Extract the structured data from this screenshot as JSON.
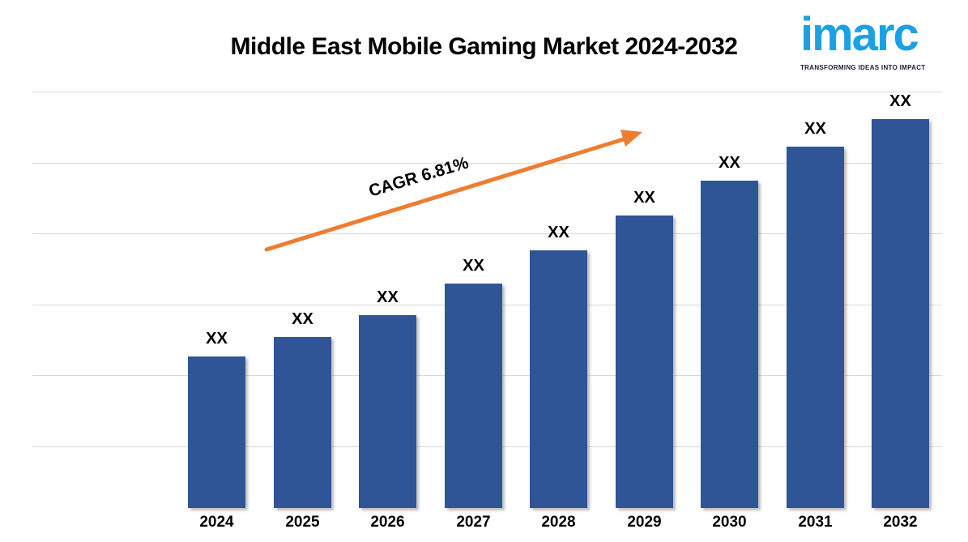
{
  "title": "Middle East Mobile Gaming Market 2024-2032",
  "logo": {
    "text": "imarc",
    "tagline": "TRANSFORMING IDEAS INTO IMPACT",
    "brand_color": "#1BA1E3",
    "tagline_color": "#1D1D35"
  },
  "annotation": {
    "label": "CAGR 6.81%"
  },
  "chart_data": {
    "type": "bar",
    "title": "Middle East Mobile Gaming Market 2024-2032",
    "categories": [
      "2024",
      "2025",
      "2026",
      "2027",
      "2028",
      "2029",
      "2030",
      "2031",
      "2032"
    ],
    "values": [
      "XX",
      "XX",
      "XX",
      "XX",
      "XX",
      "XX",
      "XX",
      "XX",
      "XX"
    ],
    "relative_bar_heights": [
      0.364,
      0.41,
      0.463,
      0.539,
      0.619,
      0.702,
      0.786,
      0.868,
      0.934
    ],
    "annotation": "CAGR 6.81%",
    "xlabel": "",
    "ylabel": "",
    "legend": "none",
    "gridline_count": 6,
    "colors": {
      "bar": "#2F5597",
      "arrow": "#ED7D31",
      "gridline": "#D9D9D9",
      "text": "#000000",
      "background": "#FFFFFF"
    }
  }
}
